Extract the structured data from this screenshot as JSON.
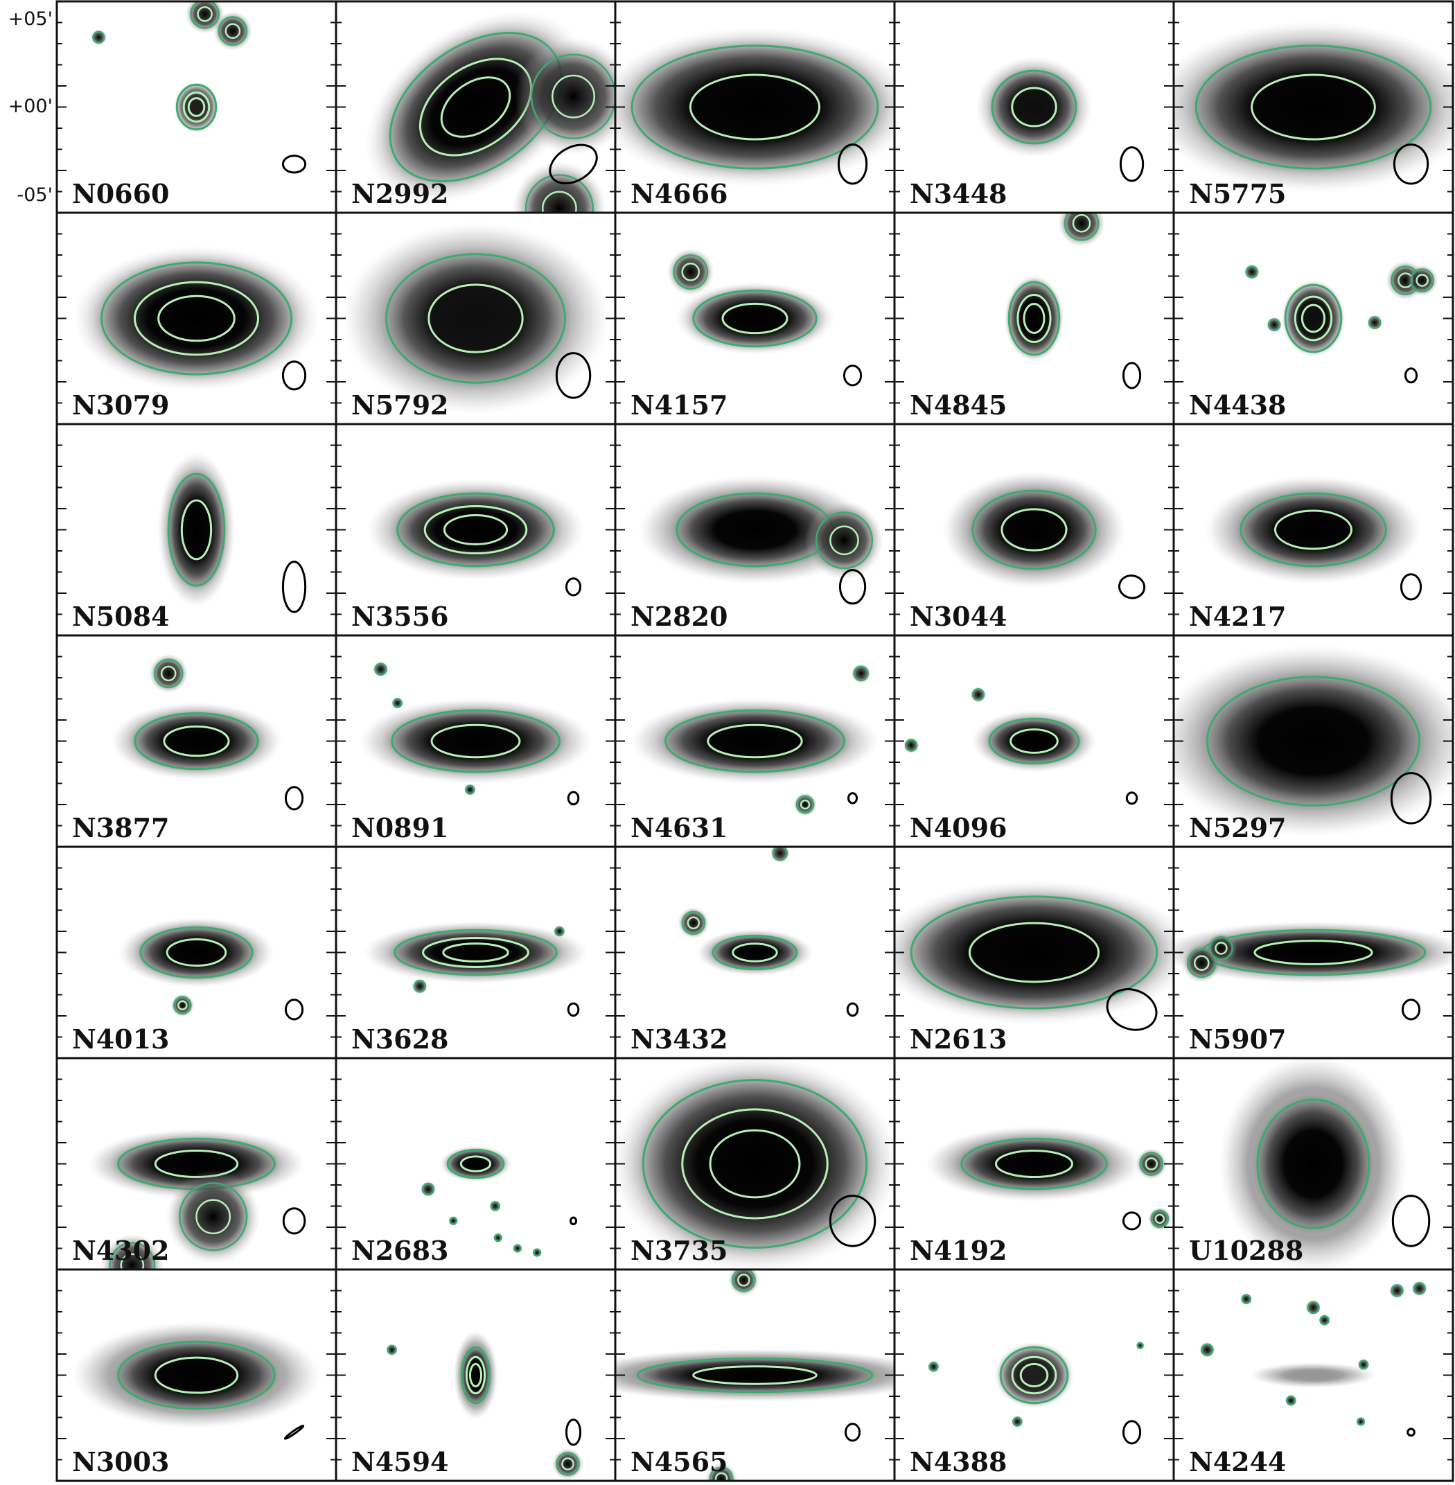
{
  "axis": {
    "dec_labels": [
      "+05'",
      "+00'",
      "-05'"
    ]
  },
  "colors": {
    "frame": "#111111",
    "contour_outer": "#3daa6e",
    "contour_inner": "#b6f0b4",
    "beam": "#000000",
    "background": "#ffffff"
  },
  "panels": [
    {
      "name": "N0660",
      "rx": 0.07,
      "ry": 0.08,
      "angle": 0,
      "intensity": 0.8,
      "contours": 3,
      "halo": 0.6,
      "extras": [
        [
          0.53,
          0.06,
          0.05
        ],
        [
          0.63,
          0.14,
          0.05
        ],
        [
          0.15,
          0.17,
          0.02
        ]
      ],
      "beam": [
        0.04,
        0.03,
        0
      ]
    },
    {
      "name": "N2992",
      "rx": 0.34,
      "ry": 0.22,
      "angle": 35,
      "intensity": 1.0,
      "contours": 3,
      "halo": 1.3,
      "extras": [
        [
          0.85,
          0.45,
          0.15
        ],
        [
          0.8,
          0.98,
          0.12
        ]
      ],
      "beam": [
        0.09,
        0.06,
        30
      ]
    },
    {
      "name": "N4666",
      "rx": 0.44,
      "ry": 0.22,
      "angle": 0,
      "intensity": 1.0,
      "contours": 2,
      "halo": 1.3,
      "extras": [],
      "beam": [
        0.05,
        0.07,
        0
      ]
    },
    {
      "name": "N3448",
      "rx": 0.15,
      "ry": 0.13,
      "angle": 0,
      "intensity": 0.9,
      "contours": 2,
      "halo": 1.4,
      "extras": [],
      "beam": [
        0.04,
        0.06,
        0
      ]
    },
    {
      "name": "N5775",
      "rx": 0.42,
      "ry": 0.22,
      "angle": 0,
      "intensity": 1.0,
      "contours": 2,
      "halo": 1.4,
      "extras": [],
      "beam": [
        0.06,
        0.07,
        0
      ]
    },
    {
      "name": "N3079",
      "rx": 0.34,
      "ry": 0.2,
      "angle": 0,
      "intensity": 1.0,
      "contours": 3,
      "halo": 1.3,
      "extras": [],
      "beam": [
        0.04,
        0.05,
        0
      ]
    },
    {
      "name": "N5792",
      "rx": 0.32,
      "ry": 0.23,
      "angle": 0,
      "intensity": 0.9,
      "contours": 2,
      "halo": 1.5,
      "extras": [],
      "beam": [
        0.06,
        0.08,
        0
      ]
    },
    {
      "name": "N4157",
      "rx": 0.22,
      "ry": 0.1,
      "angle": 0,
      "intensity": 1.0,
      "contours": 2,
      "halo": 1.3,
      "extras": [
        [
          0.27,
          0.28,
          0.06
        ]
      ],
      "beam": [
        0.03,
        0.035,
        0
      ]
    },
    {
      "name": "N4845",
      "rx": 0.09,
      "ry": 0.13,
      "angle": 0,
      "intensity": 1.0,
      "contours": 3,
      "halo": 1.2,
      "extras": [
        [
          0.67,
          0.05,
          0.06
        ]
      ],
      "beam": [
        0.03,
        0.045,
        0
      ]
    },
    {
      "name": "N4438",
      "rx": 0.1,
      "ry": 0.12,
      "angle": 0,
      "intensity": 0.9,
      "contours": 3,
      "halo": 1.1,
      "extras": [
        [
          0.83,
          0.32,
          0.05
        ],
        [
          0.89,
          0.32,
          0.04
        ],
        [
          0.28,
          0.28,
          0.02
        ],
        [
          0.72,
          0.52,
          0.02
        ],
        [
          0.36,
          0.53,
          0.02
        ]
      ],
      "beam": [
        0.02,
        0.025,
        0
      ]
    },
    {
      "name": "N5084",
      "rx": 0.1,
      "ry": 0.2,
      "angle": 0,
      "intensity": 1.0,
      "contours": 2,
      "halo": 1.4,
      "extras": [],
      "beam": [
        0.04,
        0.09,
        0
      ]
    },
    {
      "name": "N3556",
      "rx": 0.28,
      "ry": 0.13,
      "angle": 0,
      "intensity": 1.0,
      "contours": 3,
      "halo": 1.4,
      "extras": [],
      "beam": [
        0.025,
        0.03,
        0
      ]
    },
    {
      "name": "N2820",
      "rx": 0.28,
      "ry": 0.13,
      "angle": 0,
      "intensity": 1.0,
      "contours": 1,
      "halo": 1.5,
      "extras": [
        [
          0.82,
          0.55,
          0.1
        ]
      ],
      "beam": [
        0.045,
        0.06,
        0
      ]
    },
    {
      "name": "N3044",
      "rx": 0.22,
      "ry": 0.14,
      "angle": 0,
      "intensity": 1.0,
      "contours": 2,
      "halo": 1.5,
      "extras": [],
      "beam": [
        0.045,
        0.04,
        -10
      ]
    },
    {
      "name": "N4217",
      "rx": 0.26,
      "ry": 0.13,
      "angle": 0,
      "intensity": 1.0,
      "contours": 2,
      "halo": 1.5,
      "extras": [],
      "beam": [
        0.035,
        0.045,
        0
      ]
    },
    {
      "name": "N3877",
      "rx": 0.22,
      "ry": 0.1,
      "angle": 0,
      "intensity": 1.0,
      "contours": 2,
      "halo": 1.4,
      "extras": [
        [
          0.4,
          0.18,
          0.05
        ]
      ],
      "beam": [
        0.03,
        0.04,
        0
      ]
    },
    {
      "name": "N0891",
      "rx": 0.3,
      "ry": 0.11,
      "angle": 0,
      "intensity": 1.0,
      "contours": 2,
      "halo": 1.4,
      "extras": [
        [
          0.16,
          0.16,
          0.02
        ],
        [
          0.22,
          0.32,
          0.015
        ],
        [
          0.48,
          0.73,
          0.015
        ]
      ],
      "beam": [
        0.018,
        0.022,
        0
      ]
    },
    {
      "name": "N4631",
      "rx": 0.32,
      "ry": 0.11,
      "angle": 0,
      "intensity": 1.0,
      "contours": 2,
      "halo": 1.4,
      "extras": [
        [
          0.68,
          0.8,
          0.03
        ],
        [
          0.88,
          0.18,
          0.025
        ]
      ],
      "beam": [
        0.015,
        0.018,
        0
      ]
    },
    {
      "name": "N4096",
      "rx": 0.16,
      "ry": 0.08,
      "angle": 0,
      "intensity": 1.0,
      "contours": 2,
      "halo": 1.4,
      "extras": [
        [
          0.3,
          0.28,
          0.02
        ],
        [
          0.06,
          0.52,
          0.02
        ]
      ],
      "beam": [
        0.018,
        0.02,
        0
      ]
    },
    {
      "name": "N5297",
      "rx": 0.38,
      "ry": 0.23,
      "angle": 0,
      "intensity": 1.0,
      "contours": 1,
      "halo": 1.5,
      "extras": [],
      "beam": [
        0.07,
        0.09,
        0
      ]
    },
    {
      "name": "N4013",
      "rx": 0.2,
      "ry": 0.09,
      "angle": 0,
      "intensity": 1.0,
      "contours": 2,
      "halo": 1.4,
      "extras": [
        [
          0.45,
          0.75,
          0.03
        ]
      ],
      "beam": [
        0.03,
        0.035,
        0
      ]
    },
    {
      "name": "N3628",
      "rx": 0.29,
      "ry": 0.08,
      "angle": 0,
      "intensity": 1.0,
      "contours": 3,
      "halo": 1.4,
      "extras": [
        [
          0.3,
          0.66,
          0.02
        ],
        [
          0.8,
          0.4,
          0.015
        ]
      ],
      "beam": [
        0.018,
        0.022,
        0
      ]
    },
    {
      "name": "N3432",
      "rx": 0.15,
      "ry": 0.06,
      "angle": 0,
      "intensity": 1.0,
      "contours": 2,
      "halo": 1.4,
      "extras": [
        [
          0.28,
          0.36,
          0.04
        ],
        [
          0.59,
          0.03,
          0.025
        ]
      ],
      "beam": [
        0.018,
        0.022,
        0
      ]
    },
    {
      "name": "N2613",
      "rx": 0.44,
      "ry": 0.2,
      "angle": 0,
      "intensity": 1.0,
      "contours": 2,
      "halo": 1.3,
      "extras": [],
      "beam": [
        0.09,
        0.07,
        -20
      ]
    },
    {
      "name": "N5907",
      "rx": 0.4,
      "ry": 0.08,
      "angle": 0,
      "intensity": 1.0,
      "contours": 2,
      "halo": 1.4,
      "extras": [
        [
          0.1,
          0.55,
          0.05
        ],
        [
          0.17,
          0.48,
          0.04
        ]
      ],
      "beam": [
        0.03,
        0.035,
        0
      ]
    },
    {
      "name": "N4302",
      "rx": 0.28,
      "ry": 0.09,
      "angle": 0,
      "intensity": 1.0,
      "contours": 2,
      "halo": 1.4,
      "extras": [
        [
          0.56,
          0.75,
          0.12
        ],
        [
          0.27,
          0.98,
          0.08
        ]
      ],
      "beam": [
        0.038,
        0.045,
        0
      ]
    },
    {
      "name": "N2683",
      "rx": 0.1,
      "ry": 0.05,
      "angle": 0,
      "intensity": 1.0,
      "contours": 2,
      "halo": 1.3,
      "extras": [
        [
          0.33,
          0.62,
          0.02
        ],
        [
          0.57,
          0.7,
          0.015
        ],
        [
          0.42,
          0.77,
          0.012
        ],
        [
          0.58,
          0.85,
          0.012
        ],
        [
          0.65,
          0.9,
          0.012
        ],
        [
          0.72,
          0.92,
          0.012
        ]
      ],
      "beam": [
        0.01,
        0.012,
        0
      ]
    },
    {
      "name": "N3735",
      "rx": 0.4,
      "ry": 0.3,
      "angle": 0,
      "intensity": 1.0,
      "contours": 3,
      "halo": 1.3,
      "extras": [],
      "beam": [
        0.08,
        0.09,
        0
      ]
    },
    {
      "name": "N4192",
      "rx": 0.26,
      "ry": 0.09,
      "angle": 0,
      "intensity": 1.0,
      "contours": 2,
      "halo": 1.5,
      "extras": [
        [
          0.92,
          0.5,
          0.04
        ],
        [
          0.95,
          0.76,
          0.03
        ]
      ],
      "beam": [
        0.03,
        0.03,
        0
      ]
    },
    {
      "name": "U10288",
      "rx": 0.2,
      "ry": 0.23,
      "angle": 0,
      "intensity": 1.0,
      "contours": 1,
      "halo": 1.7,
      "extras": [],
      "beam": [
        0.065,
        0.09,
        0
      ]
    },
    {
      "name": "N3003",
      "rx": 0.28,
      "ry": 0.12,
      "angle": 0,
      "intensity": 1.0,
      "contours": 2,
      "halo": 1.6,
      "extras": [],
      "beam": [
        0.04,
        0.003,
        35
      ]
    },
    {
      "name": "N4594",
      "rx": 0.05,
      "ry": 0.1,
      "angle": 0,
      "intensity": 1.0,
      "contours": 3,
      "halo": 1.6,
      "extras": [
        [
          0.83,
          0.92,
          0.04
        ],
        [
          0.2,
          0.38,
          0.015
        ]
      ],
      "beam": [
        0.025,
        0.045,
        0
      ]
    },
    {
      "name": "N4565",
      "rx": 0.42,
      "ry": 0.06,
      "angle": 0,
      "intensity": 1.0,
      "contours": 2,
      "halo": 1.6,
      "extras": [
        [
          0.46,
          0.05,
          0.04
        ],
        [
          0.38,
          0.99,
          0.04
        ]
      ],
      "beam": [
        0.025,
        0.03,
        0
      ]
    },
    {
      "name": "N4388",
      "rx": 0.12,
      "ry": 0.1,
      "angle": 0,
      "intensity": 0.8,
      "contours": 3,
      "halo": 1.2,
      "extras": [
        [
          0.14,
          0.46,
          0.015
        ],
        [
          0.44,
          0.72,
          0.015
        ],
        [
          0.88,
          0.36,
          0.01
        ]
      ],
      "beam": [
        0.03,
        0.04,
        0
      ]
    },
    {
      "name": "N4244",
      "rx": 0.2,
      "ry": 0.04,
      "angle": 0,
      "intensity": 0.3,
      "contours": 0,
      "halo": 0.8,
      "extras": [
        [
          0.12,
          0.38,
          0.02
        ],
        [
          0.5,
          0.18,
          0.02
        ],
        [
          0.54,
          0.24,
          0.015
        ],
        [
          0.8,
          0.1,
          0.02
        ],
        [
          0.88,
          0.09,
          0.02
        ],
        [
          0.26,
          0.14,
          0.015
        ],
        [
          0.42,
          0.62,
          0.015
        ],
        [
          0.68,
          0.45,
          0.015
        ],
        [
          0.67,
          0.72,
          0.012
        ]
      ],
      "beam": [
        0.012,
        0.012,
        0
      ]
    }
  ]
}
